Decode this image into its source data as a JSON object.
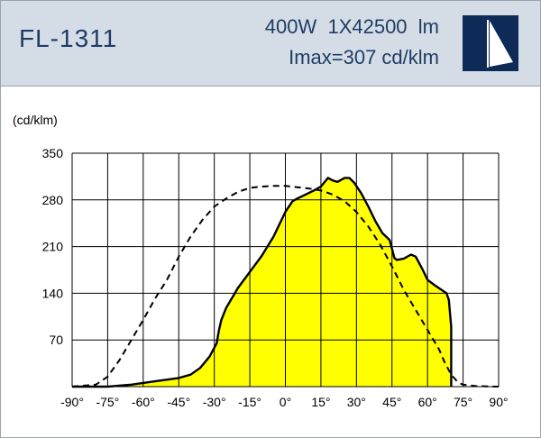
{
  "header": {
    "model": "FL-1311",
    "power_flux": "400W  1X42500  lm",
    "imax": "Imax=307 cd/klm",
    "logo_icon": "sail-logo-icon",
    "colors": {
      "band": "#d4dde6",
      "text": "#1f3c66",
      "logo_bg": "#0e2a56"
    }
  },
  "chart_data": {
    "type": "line",
    "ylabel": "(cd/klm)",
    "ylim": [
      0,
      350
    ],
    "xlim": [
      -90,
      90
    ],
    "yticks": [
      70,
      140,
      210,
      280,
      350
    ],
    "xtick_labels": [
      "-90°",
      "-75°",
      "-60°",
      "-45°",
      "-30°",
      "-15°",
      "0°",
      "15°",
      "30°",
      "45°",
      "60°",
      "75°",
      "90°"
    ],
    "grid": true,
    "series": [
      {
        "style": "solid-filled",
        "fill": "#ffff00",
        "points": [
          [
            -90,
            0
          ],
          [
            -75,
            0
          ],
          [
            -65,
            3
          ],
          [
            -55,
            8
          ],
          [
            -45,
            13
          ],
          [
            -40,
            18
          ],
          [
            -36,
            28
          ],
          [
            -32,
            45
          ],
          [
            -29,
            65
          ],
          [
            -28,
            85
          ],
          [
            -27,
            100
          ],
          [
            -25,
            118
          ],
          [
            -20,
            148
          ],
          [
            -15,
            172
          ],
          [
            -10,
            196
          ],
          [
            -5,
            225
          ],
          [
            0,
            262
          ],
          [
            3,
            278
          ],
          [
            5,
            282
          ],
          [
            8,
            287
          ],
          [
            12,
            294
          ],
          [
            15,
            300
          ],
          [
            18,
            313
          ],
          [
            20,
            309
          ],
          [
            22,
            307
          ],
          [
            25,
            313
          ],
          [
            27,
            313
          ],
          [
            29,
            306
          ],
          [
            32,
            290
          ],
          [
            35,
            270
          ],
          [
            38,
            248
          ],
          [
            41,
            230
          ],
          [
            44,
            220
          ],
          [
            46,
            193
          ],
          [
            47,
            190
          ],
          [
            50,
            192
          ],
          [
            53,
            198
          ],
          [
            55,
            195
          ],
          [
            58,
            175
          ],
          [
            60,
            160
          ],
          [
            63,
            152
          ],
          [
            66,
            145
          ],
          [
            68,
            140
          ],
          [
            69,
            130
          ],
          [
            70,
            90
          ],
          [
            70,
            0
          ]
        ]
      },
      {
        "style": "dashed",
        "points": [
          [
            -90,
            0
          ],
          [
            -80,
            3
          ],
          [
            -75,
            15
          ],
          [
            -70,
            40
          ],
          [
            -65,
            70
          ],
          [
            -60,
            100
          ],
          [
            -55,
            132
          ],
          [
            -50,
            160
          ],
          [
            -45,
            195
          ],
          [
            -40,
            225
          ],
          [
            -35,
            250
          ],
          [
            -30,
            270
          ],
          [
            -25,
            282
          ],
          [
            -20,
            292
          ],
          [
            -15,
            298
          ],
          [
            -10,
            300
          ],
          [
            -5,
            301
          ],
          [
            0,
            301
          ],
          [
            5,
            299
          ],
          [
            10,
            297
          ],
          [
            15,
            294
          ],
          [
            20,
            288
          ],
          [
            25,
            278
          ],
          [
            30,
            262
          ],
          [
            35,
            240
          ],
          [
            40,
            213
          ],
          [
            45,
            180
          ],
          [
            50,
            145
          ],
          [
            55,
            115
          ],
          [
            60,
            85
          ],
          [
            65,
            55
          ],
          [
            67,
            38
          ],
          [
            70,
            18
          ],
          [
            73,
            6
          ],
          [
            75,
            3
          ],
          [
            80,
            1
          ],
          [
            90,
            0
          ]
        ]
      }
    ]
  }
}
